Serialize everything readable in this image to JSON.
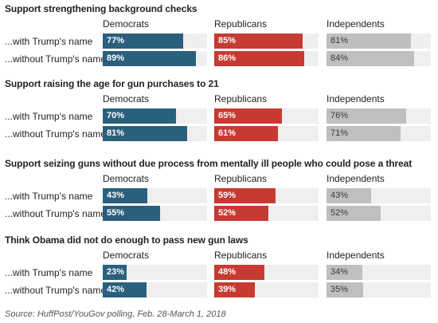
{
  "chart_data": {
    "type": "bar",
    "orientation": "horizontal",
    "groups": [
      "Democrats",
      "Republicans",
      "Independents"
    ],
    "colors": {
      "Democrats": "#2a5f7d",
      "Republicans": "#c73a32",
      "Independents": "#bfbfbf",
      "track": "#efefef"
    },
    "xlim": [
      0,
      100
    ],
    "unit": "%",
    "panels": [
      {
        "title": "Support strengthening background checks",
        "rows": [
          {
            "label": "...with Trump's name",
            "values": [
              77,
              85,
              81
            ]
          },
          {
            "label": "...without Trump's name",
            "values": [
              89,
              86,
              84
            ]
          }
        ]
      },
      {
        "title": "Support raising the age for gun purchases to 21",
        "rows": [
          {
            "label": "...with Trump's name",
            "values": [
              70,
              65,
              76
            ]
          },
          {
            "label": "...without Trump's name",
            "values": [
              81,
              61,
              71
            ]
          }
        ]
      },
      {
        "title": "Support seizing guns without due process from mentally ill people who could pose a threat",
        "rows": [
          {
            "label": "...with Trump's name",
            "values": [
              43,
              59,
              43
            ]
          },
          {
            "label": "...without Trump's name",
            "values": [
              55,
              52,
              52
            ]
          }
        ]
      },
      {
        "title": "Think Obama did not do enough to pass new gun laws",
        "rows": [
          {
            "label": "...with Trump's name",
            "values": [
              23,
              48,
              34
            ]
          },
          {
            "label": "...without Trump's name",
            "values": [
              42,
              39,
              35
            ]
          }
        ]
      }
    ],
    "source": "Source: HuffPost/YouGov polling, Feb. 28-March 1, 2018"
  }
}
